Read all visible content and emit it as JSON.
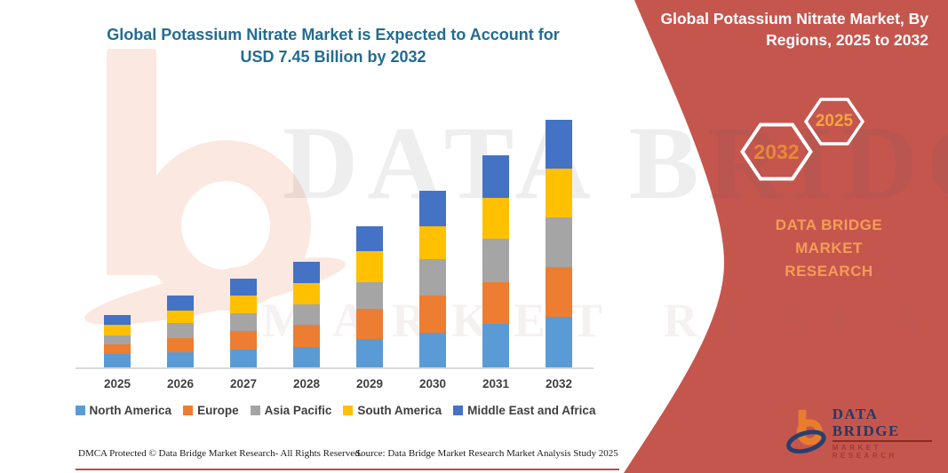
{
  "page": {
    "title_line1": "Global Potassium Nitrate Market is Expected to Account for",
    "title_line2": "USD 7.45 Billion by 2032"
  },
  "banner": {
    "title_line1": "Global Potassium Nitrate Market, By",
    "title_line2": "Regions, 2025 to 2032",
    "hexagons": [
      {
        "label": "2032"
      },
      {
        "label": "2025"
      }
    ],
    "brand_line1": "DATA BRIDGE MARKET",
    "brand_line2": "RESEARCH",
    "colors": {
      "background": "#c5564e",
      "hex_border": "#ffffff",
      "year_text": "#ef9a3c",
      "brand_text": "#f49d55"
    }
  },
  "chart_data": {
    "type": "bar",
    "stacked": true,
    "title": "Global Potassium Nitrate Market is Expected to Account for USD 7.45 Billion by 2032",
    "unit": "USD Billion",
    "categories": [
      "2025",
      "2026",
      "2027",
      "2028",
      "2029",
      "2030",
      "2031",
      "2032"
    ],
    "series": [
      {
        "name": "North America",
        "color": "#5b9bd5",
        "values": [
          0.4,
          0.45,
          0.53,
          0.61,
          0.85,
          1.04,
          1.31,
          1.52
        ]
      },
      {
        "name": "Europe",
        "color": "#ed7d31",
        "values": [
          0.29,
          0.43,
          0.56,
          0.67,
          0.91,
          1.12,
          1.26,
          1.5
        ]
      },
      {
        "name": "Asia Pacific",
        "color": "#a5a5a5",
        "values": [
          0.27,
          0.45,
          0.53,
          0.61,
          0.8,
          1.09,
          1.31,
          1.5
        ]
      },
      {
        "name": "South America",
        "color": "#ffc000",
        "values": [
          0.32,
          0.37,
          0.53,
          0.64,
          0.93,
          0.99,
          1.23,
          1.47
        ]
      },
      {
        "name": "Middle East and Africa",
        "color": "#4472c4",
        "values": [
          0.29,
          0.45,
          0.53,
          0.64,
          0.75,
          1.07,
          1.28,
          1.46
        ]
      }
    ],
    "totals_estimated": [
      1.57,
      2.15,
      2.68,
      3.17,
      4.24,
      5.31,
      6.39,
      7.45
    ],
    "xlabel": "",
    "ylabel": "",
    "y_axis_visible": false,
    "grid": false,
    "legend_position": "bottom"
  },
  "watermark": {
    "text_primary": "DATA BRIDGE",
    "text_secondary": "MARKET RESEARCH"
  },
  "logo": {
    "name_text": "DATA BRIDGE",
    "sub_text": "MARKET RESEARCH"
  },
  "footer": {
    "left": "DMCA Protected © Data Bridge Market Research-  All Rights Reserved.",
    "right": "Source: Data Bridge Market Research  Market Analysis Study 2025"
  }
}
